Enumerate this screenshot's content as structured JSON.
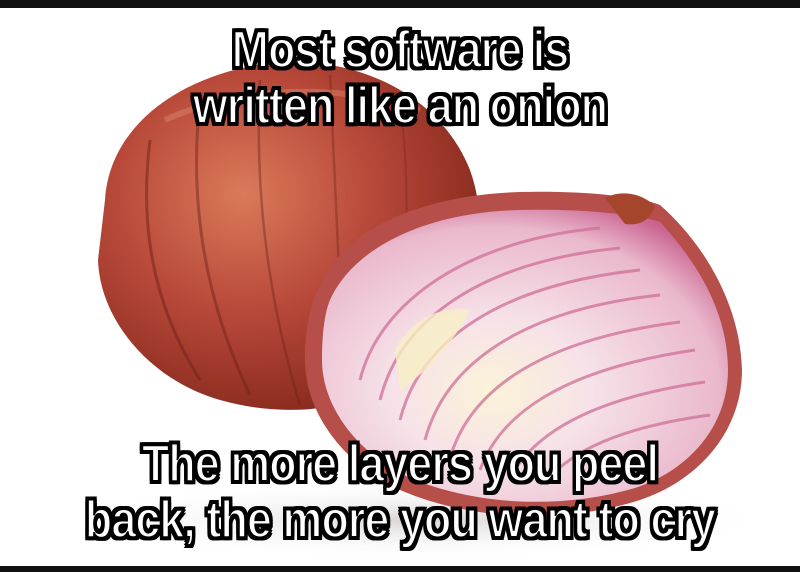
{
  "meme": {
    "top_text": {
      "line1": "Most software is",
      "line2": "written like an onion"
    },
    "bottom_text": {
      "line1": "The more layers you peel",
      "line2": "back, the more you want to cry"
    }
  },
  "colors": {
    "onion_skin": "#b8493a",
    "onion_skin_dark": "#7a2418",
    "onion_flesh": "#f3dce4",
    "onion_ring": "#c9628f",
    "caption_fill": "#ffffff",
    "caption_stroke": "#000000"
  }
}
